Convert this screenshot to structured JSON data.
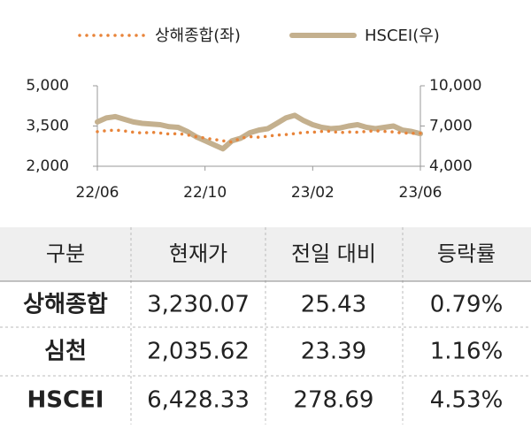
{
  "chart_data": {
    "type": "line",
    "categories": [
      "22/06",
      null,
      null,
      null,
      null,
      null,
      null,
      null,
      null,
      null,
      null,
      null,
      "22/10",
      null,
      null,
      null,
      null,
      null,
      null,
      null,
      null,
      null,
      null,
      null,
      "23/02",
      null,
      null,
      null,
      null,
      null,
      null,
      null,
      null,
      null,
      null,
      null,
      "23/06"
    ],
    "series": [
      {
        "name": "상해종합(좌)",
        "color": "#e8843a",
        "style": "dotted",
        "values": [
          3290,
          3330,
          3350,
          3320,
          3270,
          3240,
          3270,
          3240,
          3200,
          3220,
          3170,
          3100,
          3050,
          3000,
          2950,
          2900,
          3050,
          3100,
          3080,
          3120,
          3160,
          3180,
          3220,
          3260,
          3270,
          3300,
          3310,
          3250,
          3280,
          3270,
          3300,
          3320,
          3300,
          3280,
          3240,
          3230,
          3230
        ]
      },
      {
        "name": "HSCEI(우)",
        "color": "#c4b08e",
        "style": "solid",
        "axis": "y2",
        "values": [
          7300,
          7600,
          7700,
          7500,
          7300,
          7200,
          7150,
          7100,
          6950,
          6900,
          6600,
          6200,
          5900,
          5600,
          5300,
          5900,
          6100,
          6500,
          6700,
          6800,
          7200,
          7600,
          7800,
          7400,
          7100,
          6900,
          6800,
          6850,
          7000,
          7100,
          6900,
          6800,
          6900,
          7000,
          6700,
          6600,
          6428
        ]
      }
    ],
    "ylim": [
      2000,
      5000
    ],
    "yticks": [
      {
        "value": 2000,
        "label": "2,000"
      },
      {
        "value": 3500,
        "label": "3,500"
      },
      {
        "value": 5000,
        "label": "5,000"
      }
    ],
    "y2lim": [
      4000,
      10000
    ],
    "y2ticks": [
      {
        "value": 4000,
        "label": "4,000"
      },
      {
        "value": 7000,
        "label": "7,000"
      },
      {
        "value": 10000,
        "label": "10,000"
      }
    ],
    "grid": false,
    "legend": "top"
  },
  "table": {
    "header": [
      "구분",
      "현재가",
      "전일 대비",
      "등락률"
    ],
    "rows": [
      [
        "상해종합",
        "3,230.07",
        "25.43",
        "0.79%"
      ],
      [
        "심천",
        "2,035.62",
        "23.39",
        "1.16%"
      ],
      [
        "HSCEI",
        "6,428.33",
        "278.69",
        "4.53%"
      ]
    ]
  }
}
